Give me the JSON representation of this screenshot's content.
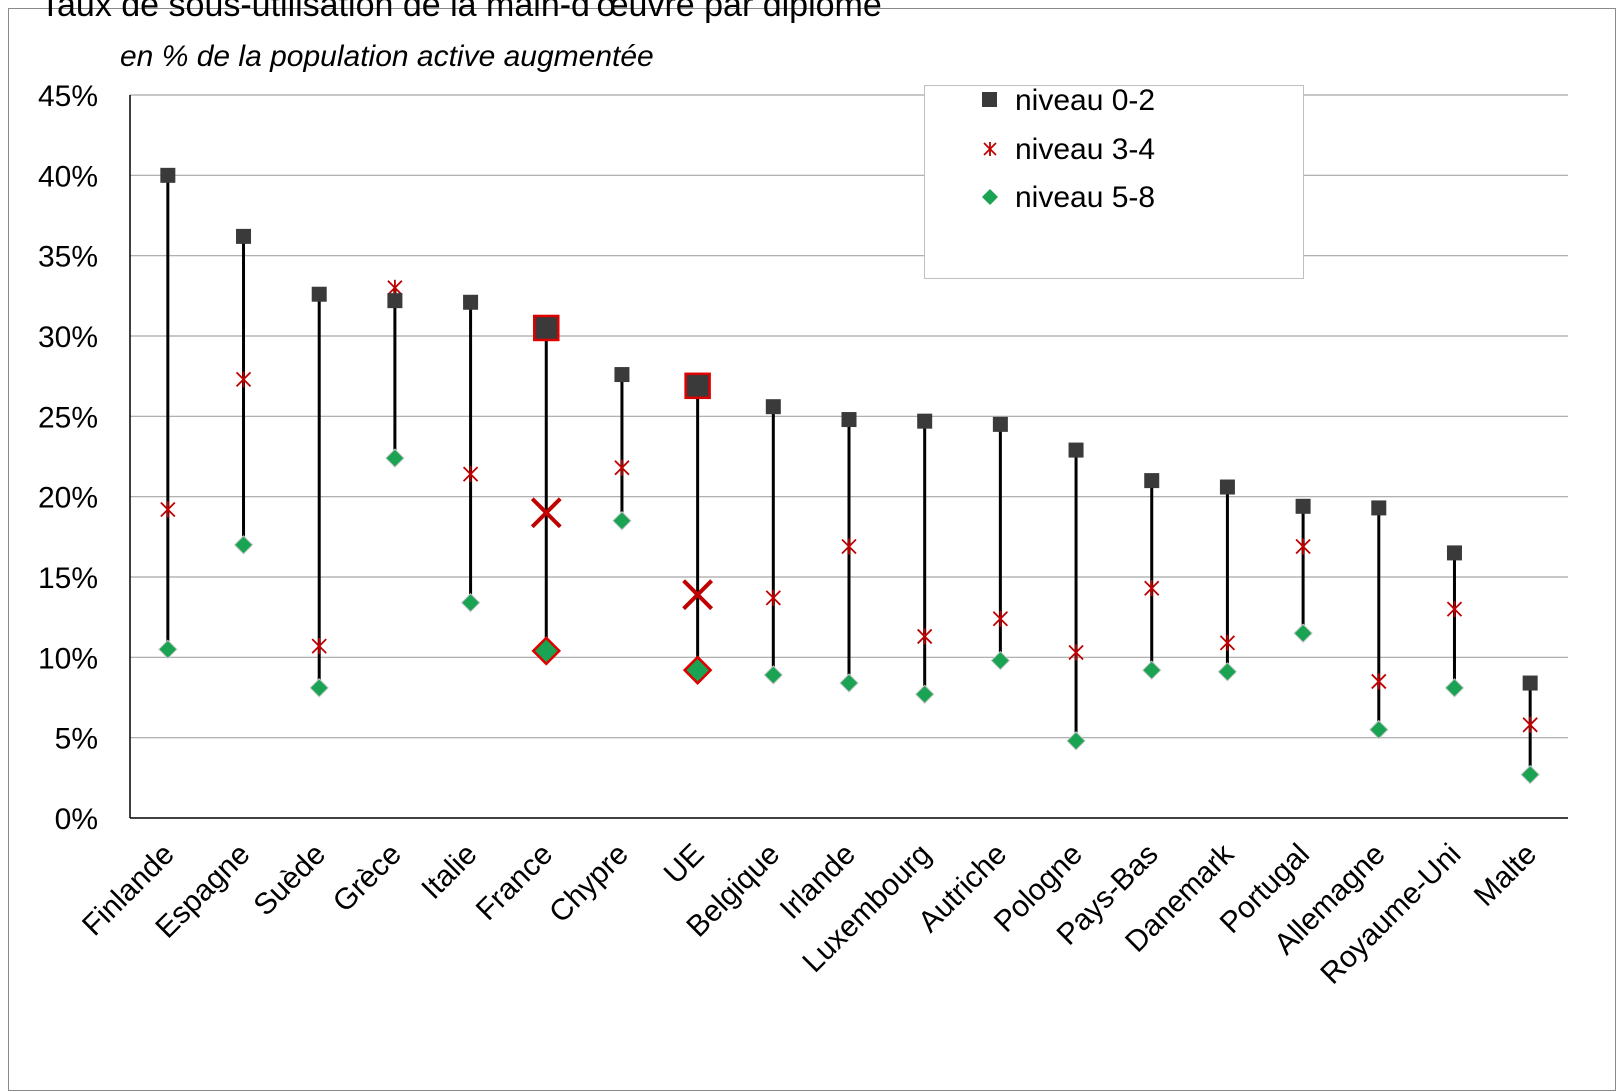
{
  "chart_data": {
    "type": "scatter",
    "title": "Taux de sous-utilisation de la main-d'œuvre par diplôme",
    "subtitle": "en % de la population active augmentée",
    "xlabel": "",
    "ylabel": "",
    "ylim": [
      0,
      45
    ],
    "yticks": [
      0,
      5,
      10,
      15,
      20,
      25,
      30,
      35,
      40,
      45
    ],
    "ytick_labels": [
      "0%",
      "5%",
      "10%",
      "15%",
      "20%",
      "25%",
      "30%",
      "35%",
      "40%",
      "45%"
    ],
    "grid": true,
    "legend_position": "top-right",
    "categories": [
      "Finlande",
      "Espagne",
      "Suède",
      "Grèce",
      "Italie",
      "France",
      "Chypre",
      "UE",
      "Belgique",
      "Irlande",
      "Luxembourg",
      "Autriche",
      "Pologne",
      "Pays-Bas",
      "Danemark",
      "Portugal",
      "Allemagne",
      "Royaume-Uni",
      "Malte"
    ],
    "highlighted": [
      "France",
      "UE"
    ],
    "series": [
      {
        "name": "niveau 0-2",
        "marker": "square",
        "color": "#3a3a3a",
        "values": [
          40.0,
          36.2,
          32.6,
          32.2,
          32.1,
          30.5,
          27.6,
          26.9,
          25.6,
          24.8,
          24.7,
          24.5,
          22.9,
          21.0,
          20.6,
          19.4,
          19.3,
          16.5,
          8.4
        ]
      },
      {
        "name": "niveau 3-4",
        "marker": "star",
        "color": "#c00000",
        "values": [
          19.2,
          27.3,
          10.7,
          33.0,
          21.4,
          19.0,
          21.8,
          13.9,
          13.7,
          16.9,
          11.3,
          12.4,
          10.3,
          14.3,
          10.9,
          16.9,
          8.5,
          13.0,
          5.8
        ]
      },
      {
        "name": "niveau 5-8",
        "marker": "diamond",
        "color": "#19a352",
        "values": [
          10.5,
          17.0,
          8.1,
          22.4,
          13.4,
          10.4,
          18.5,
          9.2,
          8.9,
          8.4,
          7.7,
          9.8,
          4.8,
          9.2,
          9.1,
          11.5,
          5.5,
          8.1,
          2.7
        ]
      }
    ],
    "highlight_color": "#e00000",
    "gridline_color": "#a6a6a6",
    "axis_color": "#000000",
    "range_line_color": "#000000"
  }
}
